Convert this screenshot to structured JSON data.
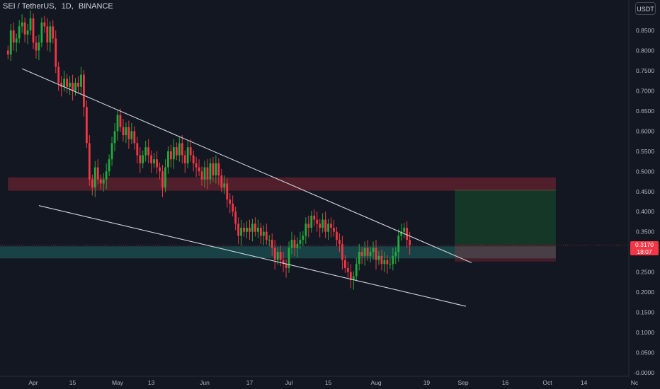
{
  "header": {
    "symbol": "SEI / TetherUS",
    "sep": ",",
    "interval": "1D",
    "exchange": "BINANCE"
  },
  "currency_button": "USDT",
  "last_price": {
    "value": "0.3170",
    "countdown": "18:07"
  },
  "colors": {
    "up": "#22ab3b",
    "down": "#f23645",
    "background": "#131722",
    "axis_text": "#b2b5be",
    "resistance_zone": "rgba(242,54,69,0.28)",
    "support_zone": "rgba(38,166,154,0.30)",
    "target_zone": "rgba(34,171,59,0.22)",
    "stop_zone": "rgba(242,54,69,0.22)",
    "trendline": "#d1d4dc"
  },
  "chart_data": {
    "type": "candlestick",
    "title": "",
    "xlabel": "",
    "ylabel": "",
    "ylim": [
      -0.03,
      0.89
    ],
    "y_ticks": [
      "0.8500",
      "0.8000",
      "0.7500",
      "0.7000",
      "0.6500",
      "0.6000",
      "0.5500",
      "0.5000",
      "0.4500",
      "0.4000",
      "0.3500",
      "0.3000",
      "0.2500",
      "0.2000",
      "0.1500",
      "0.1000",
      "0.0500",
      "-0.0000"
    ],
    "x_ticks": [
      "Apr",
      "15",
      "May",
      "13",
      "Jun",
      "17",
      "Jul",
      "15",
      "Aug",
      "19",
      "Sep",
      "16",
      "Oct",
      "14",
      "Nc"
    ],
    "x_tick_days": [
      0,
      14,
      30,
      42,
      61,
      77,
      91,
      105,
      122,
      140,
      153,
      168,
      183,
      196,
      214
    ],
    "first_candle_day": -9,
    "candles_close": [
      0.79,
      0.85,
      0.82,
      0.83,
      0.86,
      0.87,
      0.84,
      0.85,
      0.88,
      0.82,
      0.8,
      0.82,
      0.87,
      0.86,
      0.82,
      0.86,
      0.83,
      0.76,
      0.72,
      0.71,
      0.73,
      0.71,
      0.72,
      0.7,
      0.72,
      0.71,
      0.74,
      0.66,
      0.57,
      0.48,
      0.46,
      0.51,
      0.48,
      0.47,
      0.48,
      0.5,
      0.53,
      0.57,
      0.6,
      0.64,
      0.61,
      0.59,
      0.61,
      0.58,
      0.6,
      0.57,
      0.54,
      0.52,
      0.54,
      0.56,
      0.54,
      0.52,
      0.53,
      0.51,
      0.5,
      0.46,
      0.51,
      0.55,
      0.53,
      0.56,
      0.54,
      0.57,
      0.54,
      0.52,
      0.56,
      0.54,
      0.52,
      0.51,
      0.5,
      0.48,
      0.51,
      0.48,
      0.52,
      0.49,
      0.52,
      0.49,
      0.46,
      0.47,
      0.43,
      0.42,
      0.4,
      0.37,
      0.34,
      0.36,
      0.35,
      0.36,
      0.35,
      0.37,
      0.35,
      0.36,
      0.34,
      0.35,
      0.33,
      0.33,
      0.31,
      0.28,
      0.3,
      0.28,
      0.27,
      0.26,
      0.31,
      0.33,
      0.31,
      0.32,
      0.33,
      0.34,
      0.37,
      0.36,
      0.39,
      0.38,
      0.37,
      0.36,
      0.38,
      0.35,
      0.37,
      0.36,
      0.35,
      0.33,
      0.32,
      0.28,
      0.26,
      0.25,
      0.23,
      0.24,
      0.27,
      0.3,
      0.29,
      0.31,
      0.29,
      0.3,
      0.31,
      0.28,
      0.29,
      0.27,
      0.28,
      0.27,
      0.27,
      0.29,
      0.3,
      0.34,
      0.35,
      0.36,
      0.33,
      0.317
    ],
    "zones": [
      {
        "name": "resistance",
        "from_day": -9,
        "to_day": 186,
        "low": 0.452,
        "high": 0.485
      },
      {
        "name": "support",
        "from_day": -30,
        "to_day": 186,
        "low": 0.284,
        "high": 0.314
      },
      {
        "name": "target",
        "from_day": 150,
        "to_day": 186,
        "low": 0.317,
        "high": 0.455
      },
      {
        "name": "stop",
        "from_day": 150,
        "to_day": 186,
        "low": 0.276,
        "high": 0.317
      }
    ],
    "trendlines": [
      {
        "name": "upper",
        "from": [
          -4,
          0.755
        ],
        "to": [
          156,
          0.273
        ]
      },
      {
        "name": "lower",
        "from": [
          2,
          0.415
        ],
        "to": [
          154,
          0.165
        ]
      }
    ]
  }
}
